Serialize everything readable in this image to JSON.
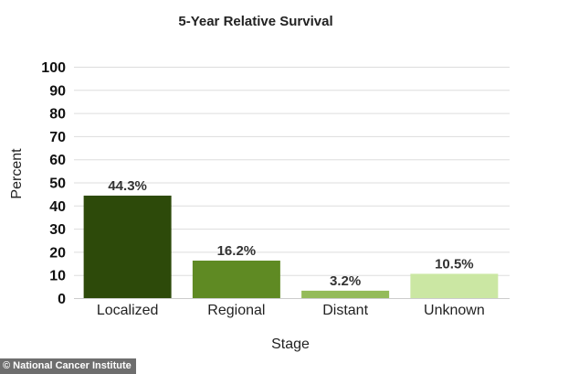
{
  "chart_data": {
    "type": "bar",
    "title": "5-Year Relative Survival",
    "xlabel": "Stage",
    "ylabel": "Percent",
    "categories": [
      "Localized",
      "Regional",
      "Distant",
      "Unknown"
    ],
    "values": [
      44.3,
      16.2,
      3.2,
      10.5
    ],
    "data_labels": [
      "44.3%",
      "16.2%",
      "3.2%",
      "10.5%"
    ],
    "bar_colors": [
      "#2d4a0a",
      "#5f8a23",
      "#94bb5a",
      "#cbe7a3"
    ],
    "ylim": [
      0,
      100
    ],
    "yticks": [
      "0",
      "10",
      "20",
      "30",
      "40",
      "50",
      "60",
      "70",
      "80",
      "90",
      "100"
    ],
    "grid": true,
    "legend": "none"
  },
  "credit": {
    "text": "© National Cancer Institute"
  }
}
